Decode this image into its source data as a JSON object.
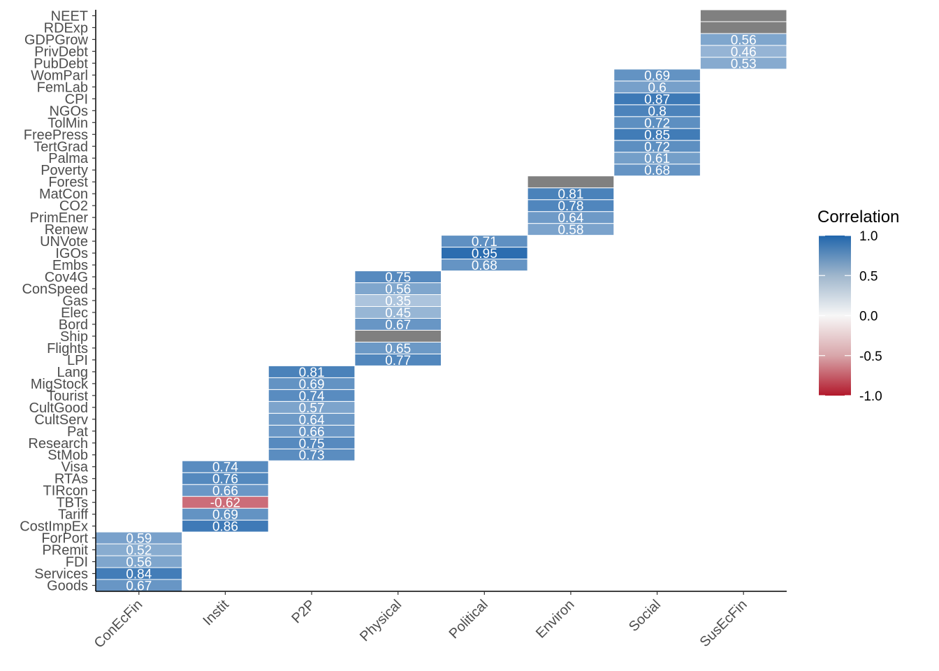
{
  "chart_data": {
    "type": "heatmap",
    "title": "",
    "xlabel": "",
    "ylabel": "",
    "x_categories": [
      "ConEcFin",
      "Instit",
      "P2P",
      "Physical",
      "Political",
      "Environ",
      "Social",
      "SusEcFin"
    ],
    "y_categories": [
      "Goods",
      "Services",
      "FDI",
      "PRemit",
      "ForPort",
      "CostImpEx",
      "Tariff",
      "TBTs",
      "TIRcon",
      "RTAs",
      "Visa",
      "StMob",
      "Research",
      "Pat",
      "CultServ",
      "CultGood",
      "Tourist",
      "MigStock",
      "Lang",
      "LPI",
      "Flights",
      "Ship",
      "Bord",
      "Elec",
      "Gas",
      "ConSpeed",
      "Cov4G",
      "Embs",
      "IGOs",
      "UNVote",
      "Renew",
      "PrimEner",
      "CO2",
      "MatCon",
      "Forest",
      "Poverty",
      "Palma",
      "TertGrad",
      "FreePress",
      "TolMin",
      "NGOs",
      "CPI",
      "FemLab",
      "WomParl",
      "PubDebt",
      "PrivDebt",
      "GDPGrow",
      "RDExp",
      "NEET"
    ],
    "cells": [
      {
        "y": "Goods",
        "x": "ConEcFin",
        "value": 0.67,
        "label": "0.67"
      },
      {
        "y": "Services",
        "x": "ConEcFin",
        "value": 0.84,
        "label": "0.84"
      },
      {
        "y": "FDI",
        "x": "ConEcFin",
        "value": 0.56,
        "label": "0.56"
      },
      {
        "y": "PRemit",
        "x": "ConEcFin",
        "value": 0.52,
        "label": "0.52"
      },
      {
        "y": "ForPort",
        "x": "ConEcFin",
        "value": 0.59,
        "label": "0.59"
      },
      {
        "y": "CostImpEx",
        "x": "Instit",
        "value": 0.86,
        "label": "0.86"
      },
      {
        "y": "Tariff",
        "x": "Instit",
        "value": 0.69,
        "label": "0.69"
      },
      {
        "y": "TBTs",
        "x": "Instit",
        "value": -0.62,
        "label": "-0.62"
      },
      {
        "y": "TIRcon",
        "x": "Instit",
        "value": 0.66,
        "label": "0.66"
      },
      {
        "y": "RTAs",
        "x": "Instit",
        "value": 0.76,
        "label": "0.76"
      },
      {
        "y": "Visa",
        "x": "Instit",
        "value": 0.74,
        "label": "0.74"
      },
      {
        "y": "StMob",
        "x": "P2P",
        "value": 0.73,
        "label": "0.73"
      },
      {
        "y": "Research",
        "x": "P2P",
        "value": 0.75,
        "label": "0.75"
      },
      {
        "y": "Pat",
        "x": "P2P",
        "value": 0.66,
        "label": "0.66"
      },
      {
        "y": "CultServ",
        "x": "P2P",
        "value": 0.64,
        "label": "0.64"
      },
      {
        "y": "CultGood",
        "x": "P2P",
        "value": 0.57,
        "label": "0.57"
      },
      {
        "y": "Tourist",
        "x": "P2P",
        "value": 0.74,
        "label": "0.74"
      },
      {
        "y": "MigStock",
        "x": "P2P",
        "value": 0.69,
        "label": "0.69"
      },
      {
        "y": "Lang",
        "x": "P2P",
        "value": 0.81,
        "label": "0.81"
      },
      {
        "y": "LPI",
        "x": "Physical",
        "value": 0.77,
        "label": "0.77"
      },
      {
        "y": "Flights",
        "x": "Physical",
        "value": 0.65,
        "label": "0.65"
      },
      {
        "y": "Ship",
        "x": "Physical",
        "value": null,
        "label": ""
      },
      {
        "y": "Bord",
        "x": "Physical",
        "value": 0.67,
        "label": "0.67"
      },
      {
        "y": "Elec",
        "x": "Physical",
        "value": 0.45,
        "label": "0.45"
      },
      {
        "y": "Gas",
        "x": "Physical",
        "value": 0.35,
        "label": "0.35"
      },
      {
        "y": "ConSpeed",
        "x": "Physical",
        "value": 0.56,
        "label": "0.56"
      },
      {
        "y": "Cov4G",
        "x": "Physical",
        "value": 0.75,
        "label": "0.75"
      },
      {
        "y": "Embs",
        "x": "Political",
        "value": 0.68,
        "label": "0.68"
      },
      {
        "y": "IGOs",
        "x": "Political",
        "value": 0.95,
        "label": "0.95"
      },
      {
        "y": "UNVote",
        "x": "Political",
        "value": 0.71,
        "label": "0.71"
      },
      {
        "y": "Renew",
        "x": "Environ",
        "value": 0.58,
        "label": "0.58"
      },
      {
        "y": "PrimEner",
        "x": "Environ",
        "value": 0.64,
        "label": "0.64"
      },
      {
        "y": "CO2",
        "x": "Environ",
        "value": 0.78,
        "label": "0.78"
      },
      {
        "y": "MatCon",
        "x": "Environ",
        "value": 0.81,
        "label": "0.81"
      },
      {
        "y": "Forest",
        "x": "Environ",
        "value": null,
        "label": ""
      },
      {
        "y": "Poverty",
        "x": "Social",
        "value": 0.68,
        "label": "0.68"
      },
      {
        "y": "Palma",
        "x": "Social",
        "value": 0.61,
        "label": "0.61"
      },
      {
        "y": "TertGrad",
        "x": "Social",
        "value": 0.72,
        "label": "0.72"
      },
      {
        "y": "FreePress",
        "x": "Social",
        "value": 0.85,
        "label": "0.85"
      },
      {
        "y": "TolMin",
        "x": "Social",
        "value": 0.72,
        "label": "0.72"
      },
      {
        "y": "NGOs",
        "x": "Social",
        "value": 0.8,
        "label": "0.8"
      },
      {
        "y": "CPI",
        "x": "Social",
        "value": 0.87,
        "label": "0.87"
      },
      {
        "y": "FemLab",
        "x": "Social",
        "value": 0.6,
        "label": "0.6"
      },
      {
        "y": "WomParl",
        "x": "Social",
        "value": 0.69,
        "label": "0.69"
      },
      {
        "y": "PubDebt",
        "x": "SusEcFin",
        "value": 0.53,
        "label": "0.53"
      },
      {
        "y": "PrivDebt",
        "x": "SusEcFin",
        "value": 0.46,
        "label": "0.46"
      },
      {
        "y": "GDPGrow",
        "x": "SusEcFin",
        "value": 0.56,
        "label": "0.56"
      },
      {
        "y": "RDExp",
        "x": "SusEcFin",
        "value": null,
        "label": ""
      },
      {
        "y": "NEET",
        "x": "SusEcFin",
        "value": null,
        "label": ""
      }
    ],
    "legend": {
      "title": "Correlation",
      "position": "right",
      "ticks": [
        1.0,
        0.5,
        0.0,
        -0.5,
        -1.0
      ],
      "tick_labels": [
        "1.0",
        "0.5",
        "0.0",
        "-0.5",
        "-1.0"
      ],
      "range": [
        -1,
        1
      ]
    },
    "colors": {
      "high": "#2166ac",
      "mid": "#f7f7f7",
      "low": "#b2182b",
      "na": "#808080"
    },
    "grid": false
  }
}
